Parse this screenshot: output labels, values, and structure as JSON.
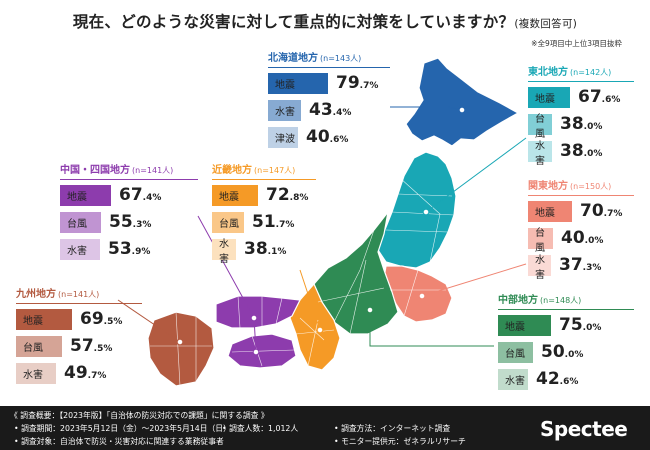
{
  "header": {
    "title": "現在、どのような災害に対して重点的に対策をしていますか？",
    "subtitle": "(複数回答可)",
    "note": "※全9項目中上位3項目抜粋"
  },
  "colors": {
    "hokkaido": "#2565ad",
    "tohoku": "#19a7b5",
    "kanto": "#ef8573",
    "chubu": "#2f8b54",
    "kinki": "#f59a26",
    "chugoku_shikoku": "#8d3cad",
    "kyushu": "#b35a40"
  },
  "chart_data": [
    {
      "type": "bar",
      "region": "北海道地方",
      "n": "(n=143人)",
      "categories": [
        "地震",
        "水害",
        "津波"
      ],
      "values": [
        79.7,
        43.4,
        40.6
      ],
      "labels_int": [
        "79",
        "43",
        "40"
      ],
      "labels_dec": [
        ".7%",
        ".4%",
        ".6%"
      ]
    },
    {
      "type": "bar",
      "region": "東北地方",
      "n": "(n=142人)",
      "categories": [
        "地震",
        "台風",
        "水害"
      ],
      "values": [
        67.6,
        38.0,
        38.0
      ],
      "labels_int": [
        "67",
        "38",
        "38"
      ],
      "labels_dec": [
        ".6%",
        ".0%",
        ".0%"
      ]
    },
    {
      "type": "bar",
      "region": "関東地方",
      "n": "(n=150人)",
      "categories": [
        "地震",
        "台風",
        "水害"
      ],
      "values": [
        70.7,
        40.0,
        37.3
      ],
      "labels_int": [
        "70",
        "40",
        "37"
      ],
      "labels_dec": [
        ".7%",
        ".0%",
        ".3%"
      ]
    },
    {
      "type": "bar",
      "region": "中部地方",
      "n": "(n=148人)",
      "categories": [
        "地震",
        "台風",
        "水害"
      ],
      "values": [
        75.0,
        50.0,
        42.6
      ],
      "labels_int": [
        "75",
        "50",
        "42"
      ],
      "labels_dec": [
        ".0%",
        ".0%",
        ".6%"
      ]
    },
    {
      "type": "bar",
      "region": "近畿地方",
      "n": "(n=147人)",
      "categories": [
        "地震",
        "台風",
        "水害"
      ],
      "values": [
        72.8,
        51.7,
        38.1
      ],
      "labels_int": [
        "72",
        "51",
        "38"
      ],
      "labels_dec": [
        ".8%",
        ".7%",
        ".1%"
      ]
    },
    {
      "type": "bar",
      "region": "中国・四国地方",
      "n": "(n=141人)",
      "categories": [
        "地震",
        "台風",
        "水害"
      ],
      "values": [
        67.4,
        55.3,
        53.9
      ],
      "labels_int": [
        "67",
        "55",
        "53"
      ],
      "labels_dec": [
        ".4%",
        ".3%",
        ".9%"
      ]
    },
    {
      "type": "bar",
      "region": "九州地方",
      "n": "(n=141人)",
      "categories": [
        "地震",
        "台風",
        "水害"
      ],
      "values": [
        69.5,
        57.5,
        49.7
      ],
      "labels_int": [
        "69",
        "57",
        "49"
      ],
      "labels_dec": [
        ".5%",
        ".5%",
        ".7%"
      ]
    }
  ],
  "footer": {
    "overview": "《 調査概要：【2023年版】「自治体の防災対応での課題」に関する調査 》",
    "period": "• 調査期間：2023年5月12日（金）〜2023年5月14日（日）",
    "count": "• 調査人数：1,012人",
    "method": "• 調査方法：インターネット調査",
    "target": "• 調査対象：自治体で防災・災害対応に関連する業務従事者",
    "provider": "• モニター提供元：ゼネラルリサーチ",
    "logo": "Spectee"
  }
}
